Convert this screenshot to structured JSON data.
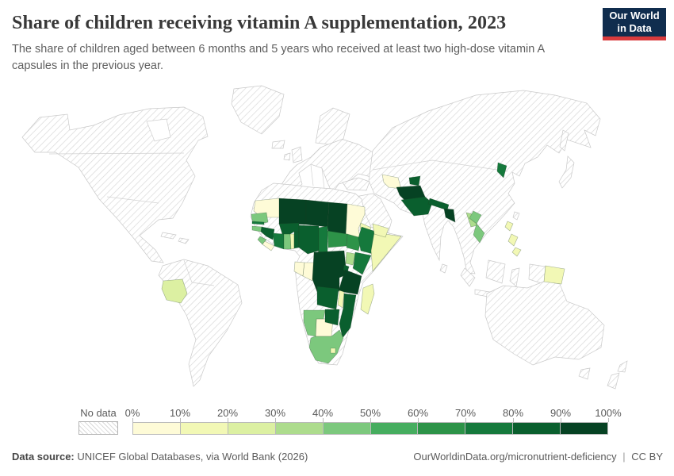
{
  "header": {
    "title": "Share of children receiving vitamin A supplementation, 2023",
    "subtitle": "The share of children aged between 6 months and 5 years who received at least two high-dose vitamin A capsules in the previous year.",
    "logo": {
      "line1": "Our World",
      "line2": "in Data",
      "bg_color": "#102d4e",
      "accent_color": "#d93b3d"
    }
  },
  "legend": {
    "no_data_label": "No data",
    "tick_labels": [
      "0%",
      "10%",
      "20%",
      "30%",
      "40%",
      "50%",
      "60%",
      "70%",
      "80%",
      "90%",
      "100%"
    ]
  },
  "footer": {
    "source_label": "Data source:",
    "source_text": "UNICEF Global Databases, via World Bank (2026)",
    "link_text": "OurWorldinData.org/micronutrient-deficiency",
    "separator": "|",
    "license_text": "CC BY"
  },
  "chart_data": {
    "type": "choropleth_map",
    "title": "Share of children receiving vitamin A supplementation, 2023",
    "year": 2023,
    "unit": "% of children aged 6 months to 5 years",
    "legend_position": "bottom",
    "no_data_style": "hatched",
    "color_scale": {
      "bins": [
        "0-10%",
        "10-20%",
        "20-30%",
        "30-40%",
        "40-50%",
        "50-60%",
        "60-70%",
        "70-80%",
        "80-90%",
        "90-100%"
      ],
      "colors": [
        "#fefbd7",
        "#f2f8b5",
        "#dcf0a2",
        "#addc8d",
        "#7cc87d",
        "#46ad5f",
        "#2d9348",
        "#15793c",
        "#0a5f2e",
        "#064223"
      ]
    },
    "countries": [
      {
        "name": "Bolivia",
        "value_bin": "20-30%"
      },
      {
        "name": "Mauritania",
        "value_bin": "0-10%"
      },
      {
        "name": "Senegal",
        "value_bin": "40-50%"
      },
      {
        "name": "Gambia",
        "value_bin": "70-80%"
      },
      {
        "name": "Guinea-Bissau",
        "value_bin": "40-50%"
      },
      {
        "name": "Guinea",
        "value_bin": "80-90%"
      },
      {
        "name": "Sierra Leone",
        "value_bin": "40-50%"
      },
      {
        "name": "Liberia",
        "value_bin": "0-10%"
      },
      {
        "name": "Cote d'Ivoire",
        "value_bin": "70-80%"
      },
      {
        "name": "Mali",
        "value_bin": "90-100%"
      },
      {
        "name": "Burkina Faso",
        "value_bin": "80-90%"
      },
      {
        "name": "Ghana",
        "value_bin": "40-50%"
      },
      {
        "name": "Togo",
        "value_bin": "10-20%"
      },
      {
        "name": "Benin",
        "value_bin": "80-90%"
      },
      {
        "name": "Niger",
        "value_bin": "90-100%"
      },
      {
        "name": "Nigeria",
        "value_bin": "80-90%"
      },
      {
        "name": "Chad",
        "value_bin": "90-100%"
      },
      {
        "name": "Sudan",
        "value_bin": "0-10%"
      },
      {
        "name": "Eritrea",
        "value_bin": "10-20%"
      },
      {
        "name": "Ethiopia",
        "value_bin": "70-80%"
      },
      {
        "name": "Somalia",
        "value_bin": "10-20%"
      },
      {
        "name": "South Sudan",
        "value_bin": "60-70%"
      },
      {
        "name": "Central African Republic",
        "value_bin": "60-70%"
      },
      {
        "name": "Cameroon",
        "value_bin": "70-80%"
      },
      {
        "name": "Gabon",
        "value_bin": "0-10%"
      },
      {
        "name": "Congo",
        "value_bin": "0-10%"
      },
      {
        "name": "Democratic Republic of Congo",
        "value_bin": "90-100%"
      },
      {
        "name": "Uganda",
        "value_bin": "30-40%"
      },
      {
        "name": "Kenya",
        "value_bin": "70-80%"
      },
      {
        "name": "Rwanda",
        "value_bin": "80-90%"
      },
      {
        "name": "Tanzania",
        "value_bin": "90-100%"
      },
      {
        "name": "Zambia",
        "value_bin": "80-90%"
      },
      {
        "name": "Malawi",
        "value_bin": "10-20%"
      },
      {
        "name": "Mozambique",
        "value_bin": "80-90%"
      },
      {
        "name": "Zimbabwe",
        "value_bin": "80-90%"
      },
      {
        "name": "Namibia",
        "value_bin": "40-50%"
      },
      {
        "name": "Botswana",
        "value_bin": "0-10%"
      },
      {
        "name": "South Africa",
        "value_bin": "40-50%"
      },
      {
        "name": "Lesotho",
        "value_bin": "10-20%"
      },
      {
        "name": "Madagascar",
        "value_bin": "10-20%"
      },
      {
        "name": "Yemen",
        "value_bin": "10-20%"
      },
      {
        "name": "Turkmenistan",
        "value_bin": "0-10%"
      },
      {
        "name": "Tajikistan",
        "value_bin": "80-90%"
      },
      {
        "name": "Afghanistan",
        "value_bin": "90-100%"
      },
      {
        "name": "Pakistan",
        "value_bin": "80-90%"
      },
      {
        "name": "Nepal",
        "value_bin": "80-90%"
      },
      {
        "name": "Bangladesh",
        "value_bin": "90-100%"
      },
      {
        "name": "Laos",
        "value_bin": "30-40%"
      },
      {
        "name": "Vietnam",
        "value_bin": "40-50%"
      },
      {
        "name": "North Korea",
        "value_bin": "70-80%"
      },
      {
        "name": "Philippines",
        "value_bin": "10-20%"
      },
      {
        "name": "Papua New Guinea",
        "value_bin": "10-20%"
      }
    ]
  }
}
